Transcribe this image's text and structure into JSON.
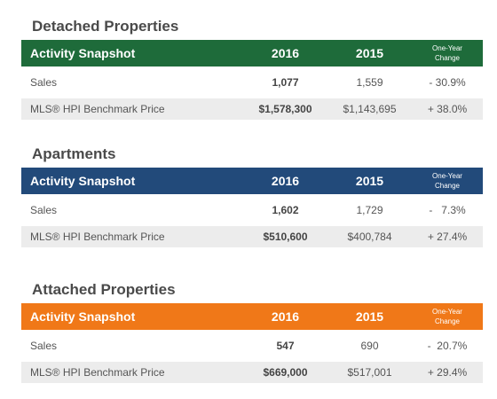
{
  "sections": [
    {
      "title": "Detached Properties",
      "color": "#1e6b3a",
      "header": {
        "label": "Activity Snapshot",
        "col1": "2016",
        "col2": "2015",
        "col3_line1": "One-Year",
        "col3_line2": "Change"
      },
      "rows": [
        {
          "label": "Sales",
          "v2016": "1,077",
          "v2015": "1,559",
          "change": "- 30.9%"
        },
        {
          "label": "MLS® HPI Benchmark Price",
          "v2016": "$1,578,300",
          "v2015": "$1,143,695",
          "change": "+ 38.0%"
        }
      ]
    },
    {
      "title": "Apartments",
      "color": "#224a7a",
      "header": {
        "label": "Activity Snapshot",
        "col1": "2016",
        "col2": "2015",
        "col3_line1": "One-Year",
        "col3_line2": "Change"
      },
      "rows": [
        {
          "label": "Sales",
          "v2016": "1,602",
          "v2015": "1,729",
          "change": "-   7.3%"
        },
        {
          "label": "MLS® HPI Benchmark Price",
          "v2016": "$510,600",
          "v2015": "$400,784",
          "change": "+ 27.4%"
        }
      ]
    },
    {
      "title": "Attached Properties",
      "color": "#f07818",
      "header": {
        "label": "Activity Snapshot",
        "col1": "2016",
        "col2": "2015",
        "col3_line1": "One-Year",
        "col3_line2": "Change"
      },
      "rows": [
        {
          "label": "Sales",
          "v2016": "547",
          "v2015": "690",
          "change": "-  20.7%"
        },
        {
          "label": "MLS® HPI Benchmark Price",
          "v2016": "$669,000",
          "v2015": "$517,001",
          "change": "+ 29.4%"
        }
      ]
    }
  ]
}
